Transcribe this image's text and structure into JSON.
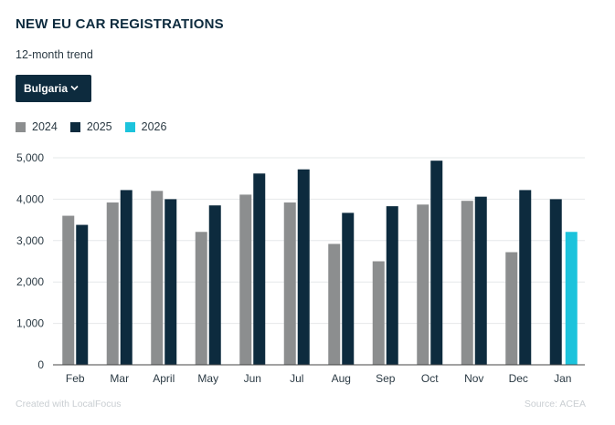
{
  "header": {
    "title": "NEW EU CAR REGISTRATIONS",
    "subtitle": "12-month trend"
  },
  "filter": {
    "selected": "Bulgaria",
    "icon": "chevron-down-icon"
  },
  "footer": {
    "credit": "Created with LocalFocus",
    "source": "Source:  ACEA"
  },
  "colors": {
    "2024": "#8c8e8f",
    "2025": "#0d2b3e",
    "2026": "#1cc3dc",
    "grid": "#e6e8ea",
    "axis": "#444444"
  },
  "chart_data": {
    "type": "bar",
    "categories": [
      "Feb",
      "Mar",
      "April",
      "May",
      "Jun",
      "Jul",
      "Aug",
      "Sep",
      "Oct",
      "Nov",
      "Dec",
      "Jan"
    ],
    "series": [
      {
        "name": "2024",
        "values": [
          3600,
          3920,
          4200,
          3210,
          4110,
          3920,
          2920,
          2500,
          3870,
          3960,
          2720,
          null
        ]
      },
      {
        "name": "2025",
        "values": [
          3380,
          4220,
          4000,
          3850,
          4620,
          4720,
          3670,
          3830,
          4930,
          4060,
          4220,
          4000
        ]
      },
      {
        "name": "2026",
        "values": [
          null,
          null,
          null,
          null,
          null,
          null,
          null,
          null,
          null,
          null,
          null,
          3210
        ]
      }
    ],
    "yticks": [
      "0",
      "1,000",
      "2,000",
      "3,000",
      "4,000",
      "5,000"
    ],
    "ylim": [
      0,
      5000
    ],
    "grid": true,
    "legend": "top-left"
  }
}
